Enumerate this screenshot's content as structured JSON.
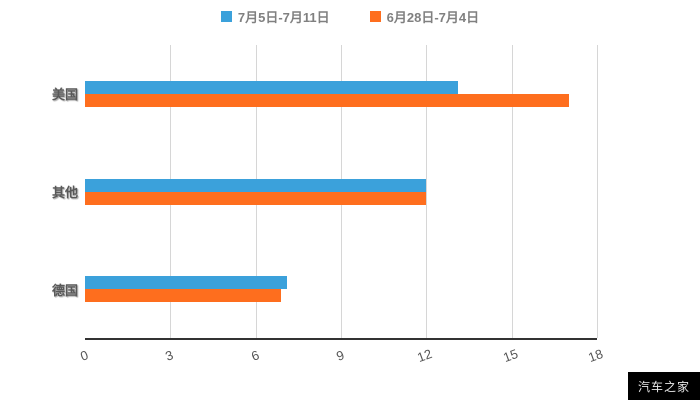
{
  "chart_data": {
    "type": "bar",
    "orientation": "horizontal",
    "title": "",
    "categories": [
      "美国",
      "其他",
      "德国"
    ],
    "series": [
      {
        "name": "7月5日-7月11日",
        "color": "#3ba1db",
        "values": [
          13.1,
          12,
          7.1
        ]
      },
      {
        "name": "6月28日-7月4日",
        "color": "#fe6e1e",
        "values": [
          17,
          12,
          6.9
        ]
      }
    ],
    "xlim": [
      0,
      18
    ],
    "x_ticks": [
      0,
      3,
      6,
      9,
      12,
      15,
      18
    ],
    "legend_position": "top",
    "grid": true
  },
  "colors": {
    "series1": "#3ba1db",
    "series2": "#fe6e1e",
    "gridline": "#d6d6d6",
    "axis": "#333333",
    "watermark_bg": "#000000"
  },
  "watermark": "汽车之家"
}
